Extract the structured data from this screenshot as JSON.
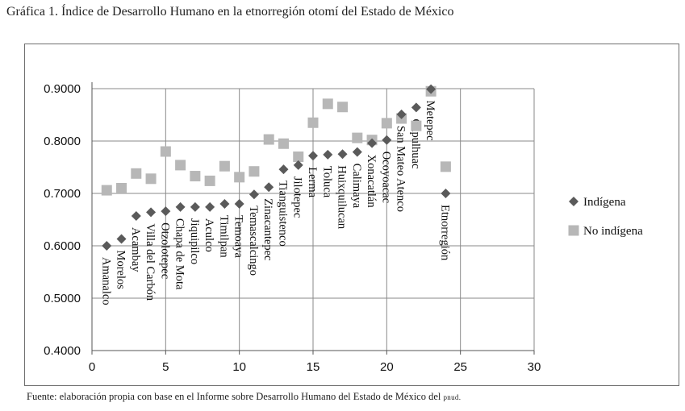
{
  "title": "Gráfica 1. Índice de Desarrollo Humano en la etnorregión otomí del Estado de México",
  "source_prefix": "Fuente: elaboración propia con base en el Informe sobre Desarrollo Humano del Estado de México del",
  "source_acronym": "pnud.",
  "chart_data": {
    "type": "scatter",
    "xlim": [
      0,
      30
    ],
    "ylim": [
      0.4,
      0.9
    ],
    "x_ticks": [
      "0",
      "5",
      "10",
      "15",
      "20",
      "25",
      "30"
    ],
    "y_ticks": [
      "0.4000",
      "0.5000",
      "0.6000",
      "0.7000",
      "0.8000",
      "0.9000"
    ],
    "grid": true,
    "legend_position": "right",
    "categories": [
      "Amanalco",
      "Morelos",
      "Acambay",
      "Villa del Carbón",
      "Otzolotepec",
      "Chapa de Mota",
      "Jiquipilco",
      "Aculco",
      "Timilpan",
      "Temoaya",
      "Temascalcingo",
      "Zinacantepec",
      "Tianguistenco",
      "Jilotepec",
      "Lerma",
      "Toluca",
      "Huixquilucan",
      "Calimaya",
      "Xonacatlán",
      "Ocoyoacac",
      "San Mateo Atenco",
      "Capulhuac",
      "Metepec",
      "Etnorregión"
    ],
    "x": [
      1,
      2,
      3,
      4,
      5,
      6,
      7,
      8,
      9,
      10,
      11,
      12,
      13,
      14,
      15,
      16,
      17,
      18,
      19,
      20,
      21,
      22,
      23,
      24
    ],
    "series": [
      {
        "name": "Indígena",
        "color": "#5a5a5a",
        "marker": "diamond",
        "values": [
          0.6,
          0.613,
          0.657,
          0.664,
          0.666,
          0.674,
          0.674,
          0.674,
          0.68,
          0.68,
          0.698,
          0.712,
          0.746,
          0.754,
          0.772,
          0.774,
          0.775,
          0.779,
          0.796,
          0.802,
          0.851,
          0.864,
          0.899,
          0.7
        ]
      },
      {
        "name": "No indígena",
        "color": "#b7b7b7",
        "marker": "square",
        "values": [
          0.706,
          0.71,
          0.738,
          0.728,
          0.78,
          0.754,
          0.733,
          0.724,
          0.752,
          0.731,
          0.742,
          0.803,
          0.795,
          0.77,
          0.835,
          0.871,
          0.865,
          0.806,
          0.802,
          0.834,
          0.843,
          0.829,
          0.895,
          0.751
        ]
      }
    ]
  }
}
